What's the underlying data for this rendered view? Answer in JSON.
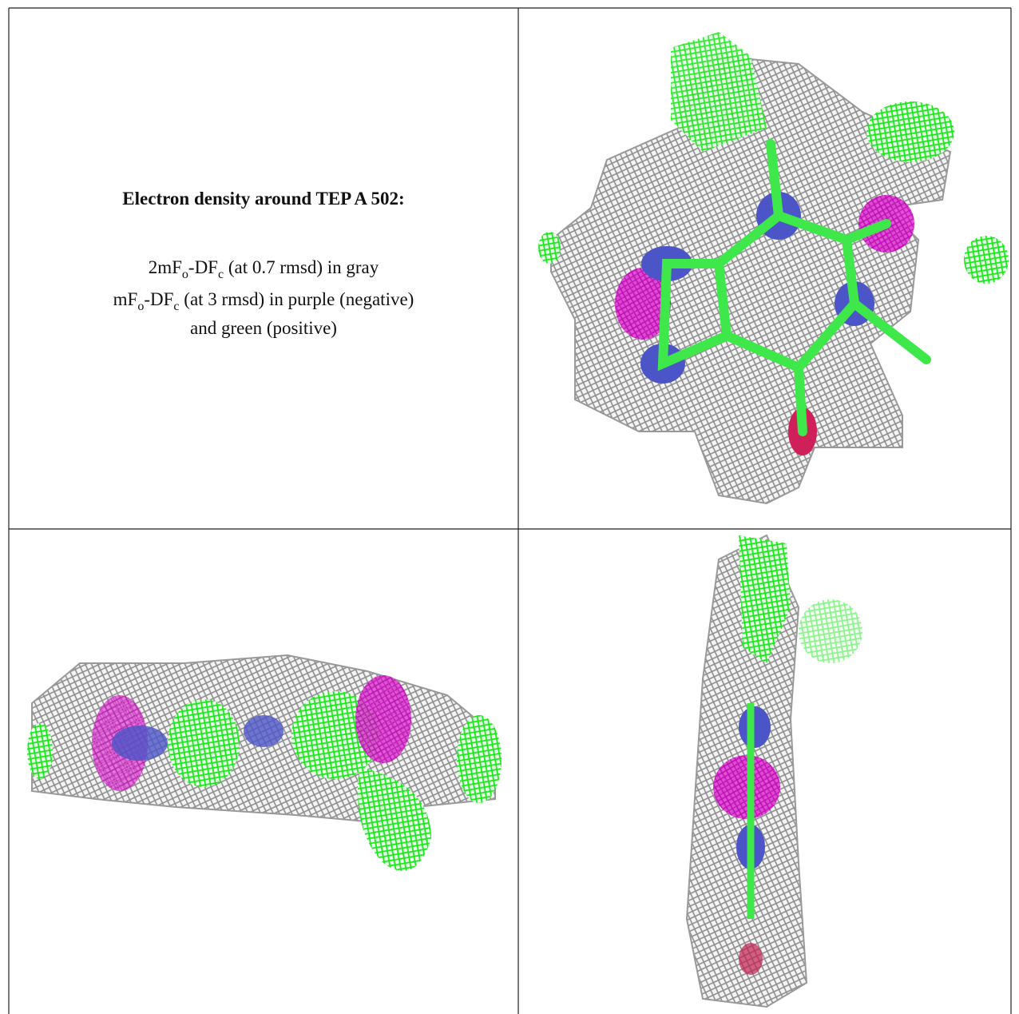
{
  "caption": {
    "title": "Electron density around TEP A 502:",
    "lines": [
      [
        "2mF",
        "o",
        "-DF",
        "c",
        " (at 0.7 rmsd) in gray"
      ],
      [
        "mF",
        "o",
        "-DF",
        "c",
        " (at 3 rmsd) in purple (negative)"
      ],
      [
        "and green (positive)"
      ]
    ]
  }
}
